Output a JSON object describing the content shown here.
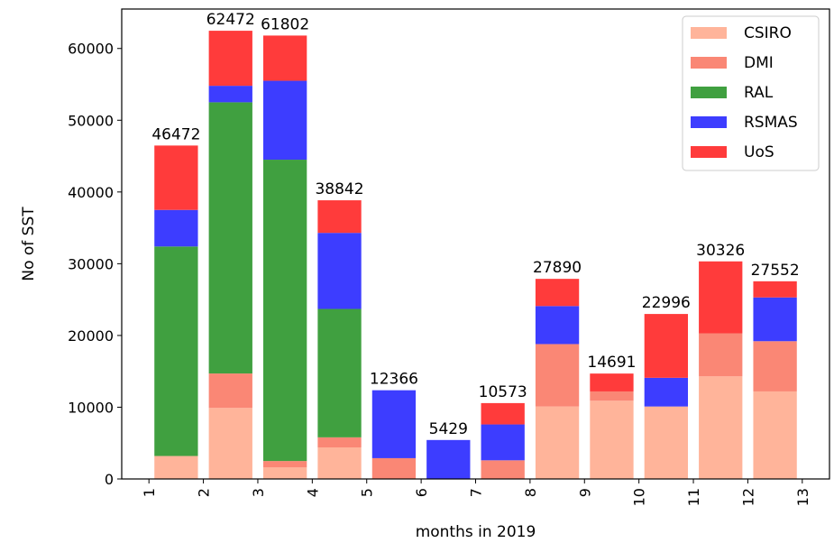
{
  "chart_data": {
    "type": "bar",
    "stacked": true,
    "title": "",
    "xlabel": "months in 2019",
    "ylabel": "No of SST",
    "ylim": [
      0,
      65500
    ],
    "xlim": [
      0.5,
      13.5
    ],
    "yticks": [
      0,
      10000,
      20000,
      30000,
      40000,
      50000,
      60000
    ],
    "xticks": [
      1,
      2,
      3,
      4,
      5,
      6,
      7,
      8,
      9,
      10,
      11,
      12,
      13
    ],
    "xtick_rotation": 90,
    "grid": false,
    "legend_position": "top-right",
    "bar_positions": [
      1.5,
      2.5,
      3.5,
      4.5,
      5.5,
      6.5,
      7.5,
      8.5,
      9.5,
      10.5,
      11.5,
      12.5
    ],
    "series": [
      {
        "name": "CSIRO",
        "color": "#ffb49a",
        "values": [
          3200,
          9900,
          1600,
          4400,
          0,
          0,
          0,
          10100,
          10900,
          10100,
          14300,
          12200
        ]
      },
      {
        "name": "DMI",
        "color": "#fa8775",
        "values": [
          0,
          4800,
          900,
          1400,
          2900,
          0,
          2600,
          8700,
          1300,
          0,
          6000,
          7000
        ]
      },
      {
        "name": "RAL",
        "color": "#40a040",
        "values": [
          29200,
          37800,
          42000,
          17900,
          0,
          0,
          0,
          0,
          0,
          0,
          0,
          0
        ]
      },
      {
        "name": "RSMAS",
        "color": "#3d3dff",
        "values": [
          5100,
          2300,
          11000,
          10600,
          9466,
          5429,
          5000,
          5300,
          0,
          4000,
          0,
          6100
        ]
      },
      {
        "name": "UoS",
        "color": "#ff3b3b",
        "values": [
          8972,
          7672,
          6302,
          4542,
          0,
          0,
          2973,
          3790,
          2491,
          8896,
          10026,
          2252
        ]
      }
    ],
    "totals": [
      46472,
      62472,
      61802,
      38842,
      12366,
      5429,
      10573,
      27890,
      14691,
      22996,
      30326,
      27552
    ]
  }
}
